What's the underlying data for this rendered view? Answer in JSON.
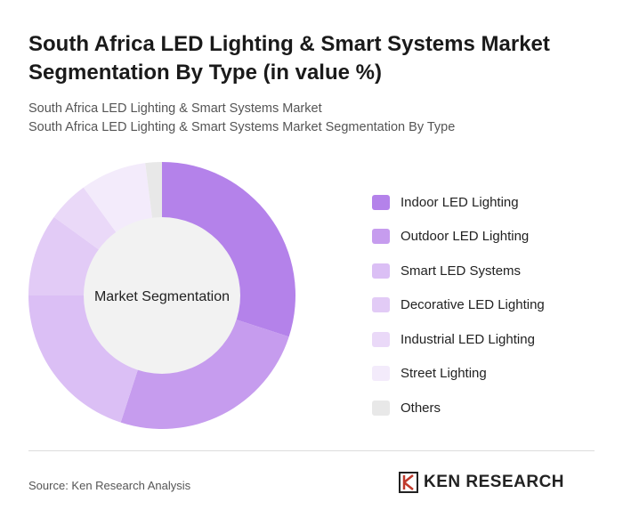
{
  "title": "South Africa LED Lighting & Smart Systems Market Segmentation By Type (in value %)",
  "subtitle_1": "South Africa LED Lighting & Smart Systems Market",
  "subtitle_2": "South Africa LED Lighting & Smart Systems Market Segmentation By Type",
  "source": "Source: Ken Research Analysis",
  "logo_text": "KEN RESEARCH",
  "chart_data": {
    "type": "pie",
    "variant": "donut",
    "center_label": "Market Segmentation",
    "legend_position": "right",
    "categories": [
      "Indoor LED Lighting",
      "Outdoor LED Lighting",
      "Smart LED Systems",
      "Decorative LED Lighting",
      "Industrial LED Lighting",
      "Street Lighting",
      "Others"
    ],
    "values": [
      30,
      25,
      20,
      10,
      5,
      8,
      2
    ],
    "colors": [
      "#b482ea",
      "#c69cee",
      "#dbbff5",
      "#e2cbf6",
      "#ead9f8",
      "#f3ebfb",
      "#e8e8e8"
    ]
  }
}
